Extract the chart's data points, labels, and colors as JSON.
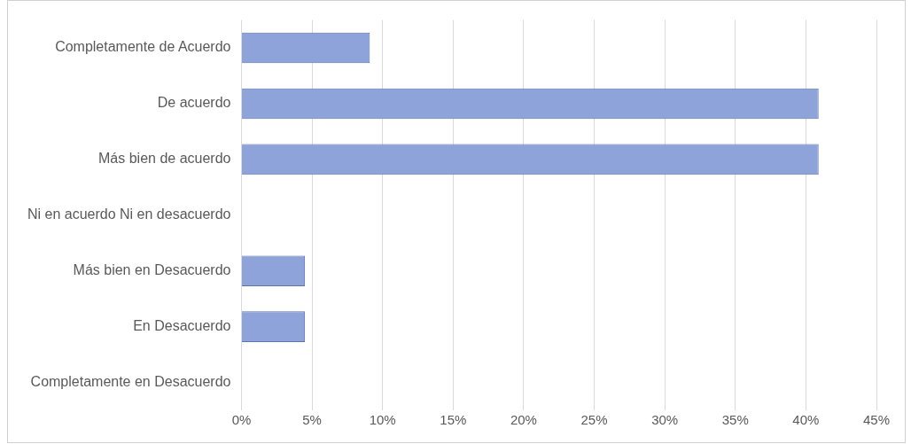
{
  "chart_data": {
    "type": "bar",
    "orientation": "horizontal",
    "categories": [
      "Completamente de Acuerdo",
      "De acuerdo",
      "Más bien de acuerdo",
      "Ni en acuerdo Ni en desacuerdo",
      "Más bien en Desacuerdo",
      "En Desacuerdo",
      "Completamente en Desacuerdo"
    ],
    "values": [
      9.1,
      40.9,
      40.9,
      0,
      4.5,
      4.5,
      0
    ],
    "color": "#8ea3d9",
    "xlim": [
      0,
      45
    ],
    "xticks": [
      {
        "value": 0,
        "label": "0%"
      },
      {
        "value": 5,
        "label": "5%"
      },
      {
        "value": 10,
        "label": "10%"
      },
      {
        "value": 15,
        "label": "15%"
      },
      {
        "value": 20,
        "label": "20%"
      },
      {
        "value": 25,
        "label": "25%"
      },
      {
        "value": 30,
        "label": "30%"
      },
      {
        "value": 35,
        "label": "35%"
      },
      {
        "value": 40,
        "label": "40%"
      },
      {
        "value": 45,
        "label": "45%"
      }
    ],
    "grid": "x",
    "legend": false
  }
}
